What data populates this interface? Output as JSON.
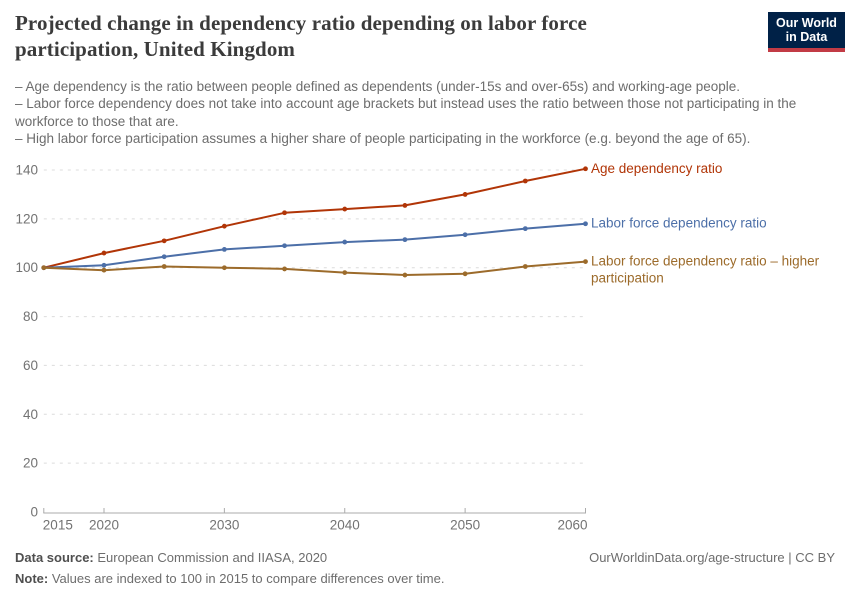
{
  "header": {
    "title": "Projected change in dependency ratio depending on labor force participation, United Kingdom",
    "logo_line1": "Our World",
    "logo_line2": "in Data",
    "logo_bg_color": "#002147",
    "logo_bar_color": "#c23b45"
  },
  "subtitle": {
    "bullets": [
      "– Age dependency is the ratio between people defined as dependents (under-15s and over-65s) and working-age people.",
      "– Labor force dependency does not take into account age brackets but instead uses the ratio between those not participating in the workforce to those that are.",
      "– High labor force participation assumes a higher share of people participating in the workforce (e.g. beyond the age of 65)."
    ]
  },
  "chart_data": {
    "type": "line",
    "title": "Projected change in dependency ratio depending on labor force participation, United Kingdom",
    "x": [
      2015,
      2020,
      2025,
      2030,
      2035,
      2040,
      2045,
      2050,
      2055,
      2060
    ],
    "series": [
      {
        "name": "Age dependency ratio",
        "label_lines": [
          "Age dependency ratio"
        ],
        "color": "#B13507",
        "values": [
          100,
          106,
          111,
          117,
          122.5,
          124,
          125.5,
          130,
          135.5,
          140.5
        ]
      },
      {
        "name": "Labor force dependency ratio",
        "label_lines": [
          "Labor force dependency ratio"
        ],
        "color": "#4C6FA8",
        "values": [
          100,
          101,
          104.5,
          107.5,
          109,
          110.5,
          111.5,
          113.5,
          116,
          118
        ]
      },
      {
        "name": "Labor force dependency ratio – higher participation",
        "label_lines": [
          "Labor force dependency ratio – higher",
          "participation"
        ],
        "color": "#9C6B2B",
        "values": [
          100,
          99,
          100.5,
          100,
          99.5,
          98,
          97,
          97.5,
          100.5,
          102.5
        ]
      }
    ],
    "xticks": [
      2015,
      2020,
      2030,
      2040,
      2050,
      2060
    ],
    "yticks": [
      0,
      20,
      40,
      60,
      80,
      100,
      120,
      140
    ],
    "xlim": [
      2015,
      2060
    ],
    "ylim": [
      0,
      140
    ],
    "grid": "horizontal-dashed",
    "legend_position": "right-of-line-ends",
    "axis_label_color": "#737373",
    "gridline_color": "#dcdcdc",
    "axis_line_color": "#ababab"
  },
  "footer": {
    "data_source_label": "Data source:",
    "data_source": " European Commission and IIASA, 2020",
    "note_label": "Note:",
    "note": " Values are indexed to 100 in 2015 to compare differences over time.",
    "credit": "OurWorldinData.org/age-structure | CC BY"
  }
}
